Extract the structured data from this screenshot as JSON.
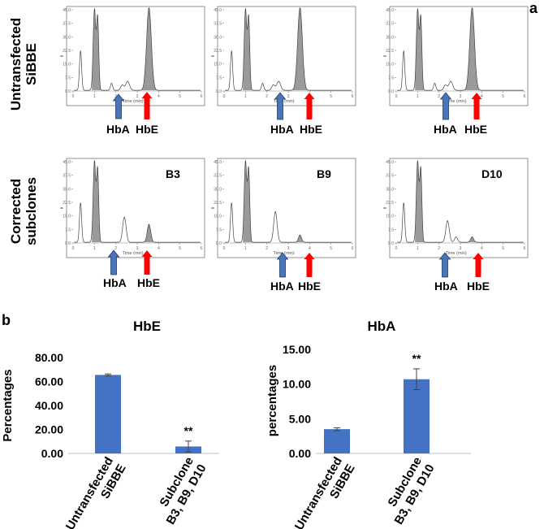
{
  "panel_a": {
    "letter": "a",
    "row1_label_line1": "Untransfected",
    "row1_label_line2": "SiBBE",
    "row2_label_line1": "Corrected",
    "row2_label_line2": "subclones",
    "x_axis_label": "Time (min)",
    "y_ticks": [
      "45.0",
      "37.5",
      "30.0",
      "22.5",
      "15.0",
      "7.5",
      "0.0"
    ],
    "x_ticks": [
      "0",
      "1",
      "2",
      "3",
      "4",
      "5",
      "6"
    ],
    "hba_label": "HbA",
    "hbe_label": "HbE",
    "clones": [
      "B3",
      "B9",
      "D10"
    ]
  },
  "panel_b": {
    "letter": "b"
  },
  "chart_data": [
    {
      "type": "bar",
      "title": "HbE",
      "ylabel": "Percentages",
      "categories": [
        "Untransfected SiBBE",
        "Subclone B3, B9, D10"
      ],
      "category_lines": [
        [
          "Untransfected",
          "SiBBE"
        ],
        [
          "Subclone",
          "B3, B9, D10"
        ]
      ],
      "values": [
        65.5,
        5.8
      ],
      "errors": [
        0.8,
        4.5
      ],
      "annotations": [
        "",
        "**"
      ],
      "ylim": [
        0,
        80
      ],
      "yticks": [
        "0.00",
        "20.00",
        "40.00",
        "60.00",
        "80.00"
      ],
      "color": "#4472C4"
    },
    {
      "type": "bar",
      "title": "HbA",
      "ylabel": "percentages",
      "categories": [
        "Untransfected SiBBE",
        "Subclone B3, B9, D10"
      ],
      "category_lines": [
        [
          "Untransfected",
          "SiBBE"
        ],
        [
          "Subclone",
          "B3, B9, D10"
        ]
      ],
      "values": [
        3.5,
        10.7
      ],
      "errors": [
        0.2,
        1.5
      ],
      "annotations": [
        "",
        "**"
      ],
      "ylim": [
        0,
        15
      ],
      "yticks": [
        "0.00",
        "5.00",
        "10.00",
        "15.00"
      ],
      "color": "#4472C4"
    }
  ]
}
